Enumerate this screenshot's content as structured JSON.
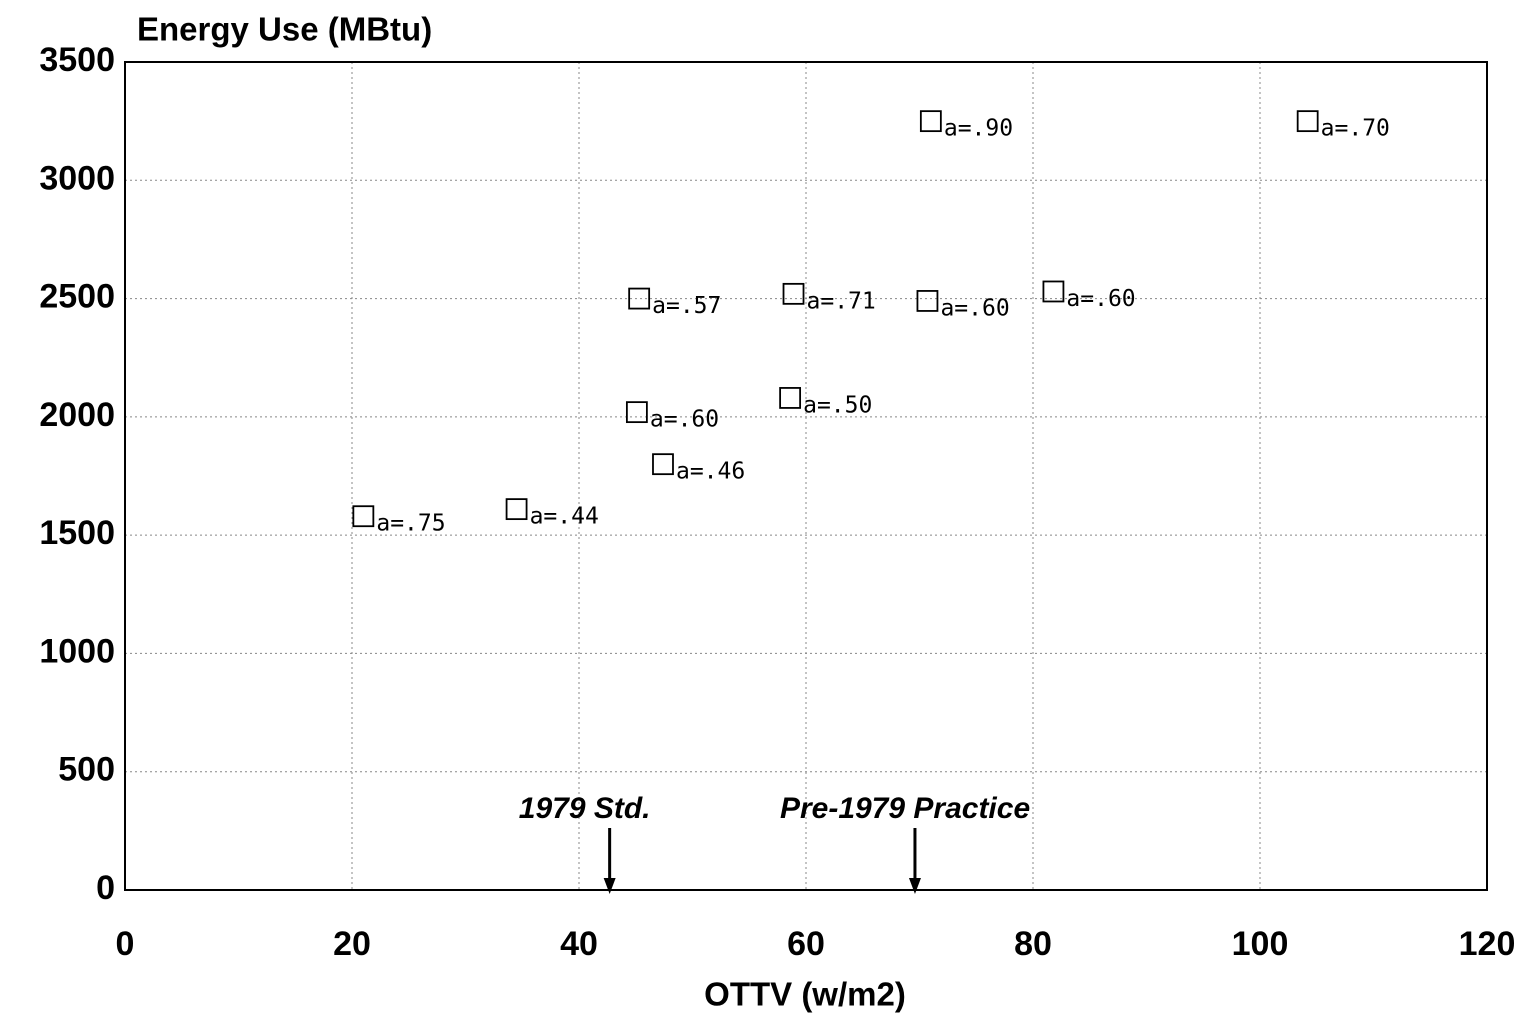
{
  "chart_data": {
    "type": "scatter",
    "title": "Energy Use (MBtu)",
    "x_label": "OTTV (w/m2)",
    "xlim": [
      0,
      120
    ],
    "xticks": [
      0,
      20,
      40,
      60,
      80,
      100,
      120
    ],
    "ylim": [
      0,
      3500
    ],
    "yticks": [
      0,
      500,
      1000,
      1500,
      2000,
      2500,
      3000,
      3500
    ],
    "grid": true,
    "series": [
      {
        "color": "#000000",
        "x": [
          21,
          34.5,
          45.1,
          47.4,
          45.3,
          58.9,
          58.6,
          71,
          70.7,
          81.8,
          104.2
        ],
        "values": [
          1580,
          1610,
          2020,
          1800,
          2500,
          2520,
          2080,
          3250,
          2490,
          2530,
          3250
        ],
        "labels": [
          "a=.75",
          "a=.44",
          "a=.60",
          "a=.46",
          "a=.57",
          "a=.71",
          "a=.50",
          "a=.90",
          "a=.60",
          "a=.60",
          "a=.70"
        ]
      }
    ],
    "annotations": [
      {
        "text": "1979 Std.",
        "x": 42.7
      },
      {
        "text": "Pre-1979 Practice",
        "x": 69.6
      }
    ]
  }
}
